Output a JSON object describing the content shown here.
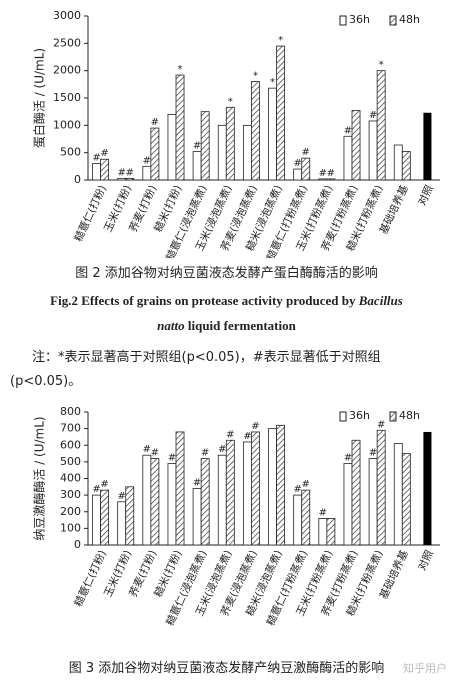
{
  "charts": [
    {
      "type": "bar",
      "y_label": "蛋白酶活 / (U/mL)",
      "categories": [
        "糙薏仁(打粉)",
        "玉米(打粉)",
        "荞麦(打粉)",
        "糙米(打粉)",
        "糙薏仁(浸泡蒸煮)",
        "玉米(浸泡蒸煮)",
        "荞麦(浸泡蒸煮)",
        "糙米(浸泡蒸煮)",
        "糙薏仁(打粉蒸煮)",
        "玉米(打粉蒸煮)",
        "荞麦(打粉蒸煮)",
        "糙米(打粉蒸煮)",
        "基础培养基",
        "对照"
      ],
      "series": [
        {
          "name": "36h",
          "color": "#ffffff",
          "hatch": false,
          "values": [
            300,
            30,
            250,
            1200,
            520,
            1000,
            1000,
            1680,
            200,
            20,
            800,
            1080,
            640,
            null
          ],
          "markers": [
            "#",
            "#",
            "#",
            null,
            "#",
            null,
            null,
            "*",
            "#",
            "#",
            "#",
            "#",
            null,
            null
          ]
        },
        {
          "name": "48h",
          "color": "#ffffff",
          "hatch": true,
          "values": [
            380,
            30,
            950,
            1920,
            1250,
            1330,
            1800,
            2450,
            400,
            20,
            1270,
            2000,
            520,
            null
          ],
          "markers": [
            "#",
            "#",
            "#",
            "*",
            null,
            "*",
            "*",
            "*",
            "#",
            "#",
            null,
            "*",
            null,
            null
          ]
        }
      ],
      "control": {
        "value": 1230,
        "color": "#000000"
      },
      "ylim": [
        0,
        3000
      ],
      "yticks": [
        0,
        500,
        1000,
        1500,
        2000,
        2500,
        3000
      ]
    },
    {
      "type": "bar",
      "y_label": "纳豆激酶酶活 / (U/mL)",
      "categories": [
        "糙薏仁(打粉)",
        "玉米(打粉)",
        "荞麦(打粉)",
        "糙米(打粉)",
        "糙薏仁(浸泡蒸煮)",
        "玉米(浸泡蒸煮)",
        "荞麦(浸泡蒸煮)",
        "糙米(浸泡蒸煮)",
        "糙薏仁(打粉蒸煮)",
        "玉米(打粉蒸煮)",
        "荞麦(打粉蒸煮)",
        "糙米(打粉蒸煮)",
        "基础培养基",
        "对照"
      ],
      "series": [
        {
          "name": "36h",
          "color": "#ffffff",
          "hatch": false,
          "values": [
            300,
            260,
            540,
            490,
            340,
            540,
            620,
            700,
            300,
            160,
            490,
            520,
            610,
            null
          ],
          "markers": [
            "#",
            "#",
            "#",
            "#",
            "#",
            "#",
            "#",
            null,
            "#",
            "#",
            "#",
            "#",
            null,
            null
          ]
        },
        {
          "name": "48h",
          "color": "#ffffff",
          "hatch": true,
          "values": [
            330,
            350,
            520,
            680,
            520,
            630,
            680,
            720,
            330,
            160,
            630,
            690,
            550,
            null
          ],
          "markers": [
            "#",
            null,
            "#",
            null,
            "#",
            "#",
            "#",
            null,
            "#",
            null,
            null,
            "#",
            null,
            null
          ]
        }
      ],
      "control": {
        "value": 680,
        "color": "#000000"
      },
      "ylim": [
        0,
        800
      ],
      "yticks": [
        0,
        100,
        200,
        300,
        400,
        500,
        600,
        700,
        800
      ]
    }
  ],
  "fig2_caption": "图 2  添加谷物对纳豆菌液态发酵产蛋白酶酶活的影响",
  "fig2_english": [
    "Fig.2 Effects of grains on protease activity produced by ",
    "Bacillus",
    "natto",
    " liquid fermentation"
  ],
  "note": "注：*表示显著高于对照组(p<0.05)，#表示显著低于对照组(p<0.05)。",
  "fig3_caption": "图 3  添加谷物对纳豆菌液态发酵产纳豆激酶酶活的影响",
  "watermark": "知乎用户"
}
